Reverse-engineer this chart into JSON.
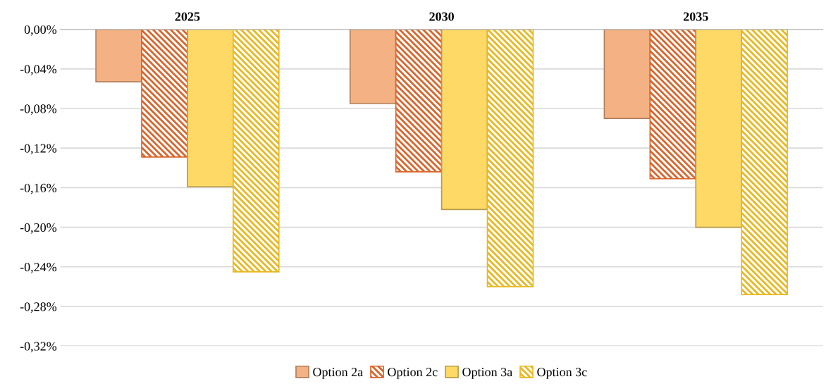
{
  "chart_data": {
    "type": "bar",
    "categories": [
      "2025",
      "2030",
      "2035"
    ],
    "series": [
      {
        "name": "Option 2a",
        "color": "#f4b183",
        "values": [
          -0.053,
          -0.075,
          -0.09
        ]
      },
      {
        "name": "Option 2c",
        "color": "#d9652b",
        "values": [
          -0.129,
          -0.144,
          -0.151
        ]
      },
      {
        "name": "Option 3a",
        "color": "#ffd966",
        "values": [
          -0.159,
          -0.182,
          -0.2
        ]
      },
      {
        "name": "Option 3c",
        "color": "#e8b820",
        "values": [
          -0.245,
          -0.26,
          -0.268
        ]
      }
    ],
    "ylim": [
      -0.32,
      0
    ],
    "yticks": [
      {
        "value": 0,
        "label": "0,00%"
      },
      {
        "value": -0.04,
        "label": "-0,04%"
      },
      {
        "value": -0.08,
        "label": "-0,08%"
      },
      {
        "value": -0.12,
        "label": "-0,12%"
      },
      {
        "value": -0.16,
        "label": "-0,16%"
      },
      {
        "value": -0.2,
        "label": "-0,20%"
      },
      {
        "value": -0.24,
        "label": "-0,24%"
      },
      {
        "value": -0.28,
        "label": "-0,28%"
      },
      {
        "value": -0.32,
        "label": "-0,32%"
      }
    ],
    "grid": "y",
    "legend": "bottom"
  }
}
